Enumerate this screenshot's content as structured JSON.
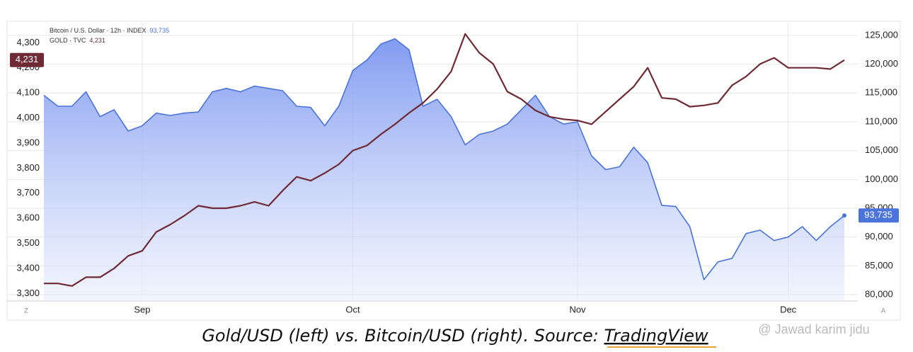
{
  "chart_data": {
    "type": "line",
    "caption": "Gold/USD (left) vs. Bitcoin/USD (right). Source: ",
    "caption_link": "TradingView",
    "watermark": "@ Jawad karim jidu",
    "corner_left": "Z",
    "corner_right": "A",
    "categories": [
      null,
      null,
      null,
      null,
      null,
      null,
      null,
      "Sep",
      null,
      null,
      null,
      null,
      null,
      null,
      null,
      null,
      null,
      null,
      null,
      null,
      null,
      null,
      "Oct",
      null,
      null,
      null,
      null,
      null,
      null,
      null,
      null,
      null,
      null,
      null,
      null,
      null,
      null,
      null,
      "Nov",
      null,
      null,
      null,
      null,
      null,
      null,
      null,
      null,
      null,
      null,
      null,
      null,
      null,
      null,
      "Dec",
      null,
      null,
      null,
      null
    ],
    "series": [
      {
        "name": "Bitcoin / U.S. Dollar · 12h · INDEX",
        "color": "#4a74d9",
        "axis": "y2",
        "fill": true,
        "last_value_label": "93,735",
        "values": [
          114600,
          112700,
          112700,
          115200,
          110900,
          112100,
          108400,
          109300,
          111500,
          111100,
          111500,
          111700,
          115200,
          115800,
          115200,
          116200,
          115800,
          115400,
          112700,
          112500,
          109300,
          112700,
          118900,
          120700,
          123500,
          124400,
          122500,
          112700,
          113900,
          110900,
          106000,
          107800,
          108400,
          109600,
          112100,
          114600,
          110900,
          109600,
          110000,
          104100,
          101700,
          102200,
          105600,
          102900,
          95500,
          95300,
          91800,
          82600,
          85700,
          86300,
          90600,
          91200,
          89400,
          90000,
          91800,
          89400,
          91800,
          93735
        ]
      },
      {
        "name": "GOLD · TVC",
        "color": "#6e2a35",
        "axis": "y",
        "fill": false,
        "last_value_label": "4,231",
        "values": [
          3340,
          3340,
          3330,
          3365,
          3365,
          3400,
          3450,
          3470,
          3545,
          3575,
          3610,
          3650,
          3640,
          3640,
          3650,
          3665,
          3650,
          3710,
          3765,
          3750,
          3780,
          3815,
          3870,
          3890,
          3935,
          3975,
          4020,
          4060,
          4115,
          4185,
          4335,
          4260,
          4215,
          4105,
          4075,
          4030,
          4005,
          3995,
          3990,
          3975,
          4025,
          4075,
          4125,
          4200,
          4080,
          4075,
          4045,
          4050,
          4060,
          4130,
          4165,
          4215,
          4240,
          4200,
          4200,
          4200,
          4195,
          4231
        ]
      }
    ],
    "ylim": [
      3270,
      4380
    ],
    "yticks": [
      {
        "value": 3300,
        "label": "3,300"
      },
      {
        "value": 3400,
        "label": "3,400"
      },
      {
        "value": 3500,
        "label": "3,500"
      },
      {
        "value": 3600,
        "label": "3,600"
      },
      {
        "value": 3700,
        "label": "3,700"
      },
      {
        "value": 3800,
        "label": "3,800"
      },
      {
        "value": 3900,
        "label": "3,900"
      },
      {
        "value": 4000,
        "label": "4,000"
      },
      {
        "value": 4100,
        "label": "4,100"
      },
      {
        "value": 4200,
        "label": "4,200"
      },
      {
        "value": 4300,
        "label": "4,300"
      }
    ],
    "y2lim": [
      78900,
      127200
    ],
    "y2ticks": [
      {
        "value": 80000,
        "label": "80,000"
      },
      {
        "value": 85000,
        "label": "85,000"
      },
      {
        "value": 90000,
        "label": "90,000"
      },
      {
        "value": 95000,
        "label": "95,000"
      },
      {
        "value": 100000,
        "label": "100,000"
      },
      {
        "value": 105000,
        "label": "105,000"
      },
      {
        "value": 110000,
        "label": "110,000"
      },
      {
        "value": 115000,
        "label": "115,000"
      },
      {
        "value": 120000,
        "label": "120,000"
      },
      {
        "value": 125000,
        "label": "125,000"
      }
    ],
    "grid": true
  }
}
